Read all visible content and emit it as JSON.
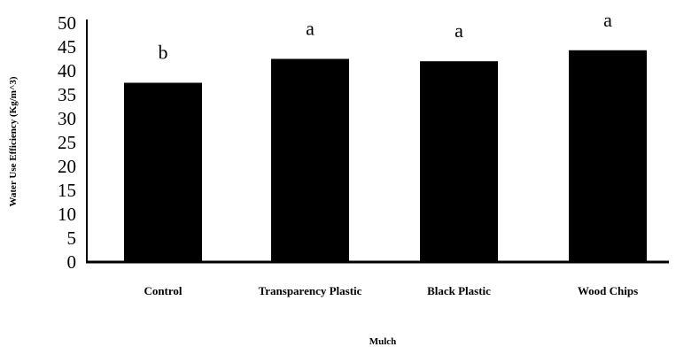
{
  "chart_data": {
    "type": "bar",
    "xlabel": "Mulch",
    "ylabel": "Water Use Efficiency (Kg/m^3)",
    "categories": [
      "Control",
      "Transparency Plastic",
      "Black Plastic",
      "Wood Chips"
    ],
    "values": [
      37.5,
      42.5,
      42.0,
      44.3
    ],
    "annotations": [
      "b",
      "a",
      "a",
      "a"
    ],
    "ylim": [
      0,
      50
    ],
    "yticks": [
      "0",
      "5",
      "10",
      "15",
      "20",
      "25",
      "30",
      "35",
      "40",
      "45",
      "50"
    ],
    "grid": false,
    "legend": "none",
    "bar_color": "#000000"
  }
}
